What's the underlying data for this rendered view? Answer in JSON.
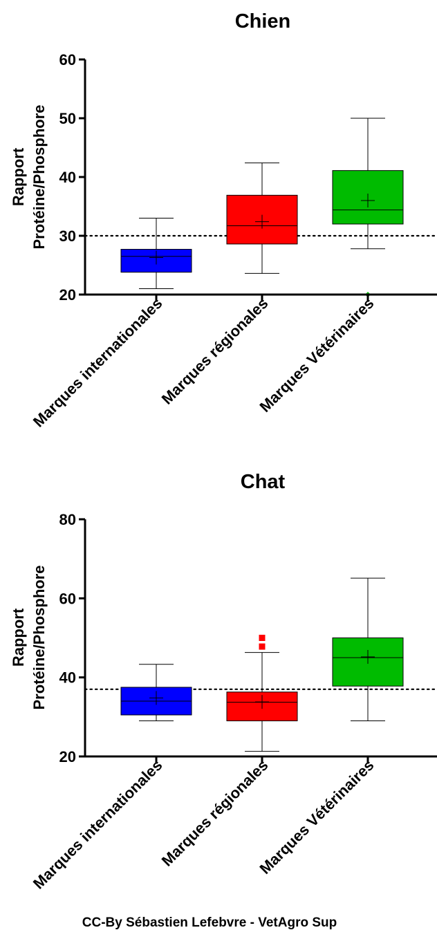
{
  "credit": "CC-By Sébastien Lefebvre - VetAgro Sup",
  "chart_data": [
    {
      "type": "box",
      "title": "Chien",
      "ylabel": [
        "Rapport",
        "Protéine/Phosphore"
      ],
      "ylim": [
        20,
        60
      ],
      "yticks": [
        "20",
        "30",
        "40",
        "50",
        "60"
      ],
      "reference_line": 30,
      "categories": [
        "Marques internationales",
        "Marques régionales",
        "Marques Vétérinaires"
      ],
      "colors": [
        "#0000ff",
        "#ff0000",
        "#00bb00"
      ],
      "boxes": [
        {
          "min": 21,
          "q1": 23.8,
          "median": 26.5,
          "q3": 27.7,
          "max": 33,
          "mean": 26.3,
          "outliers": []
        },
        {
          "min": 23.6,
          "q1": 28.6,
          "median": 31.7,
          "q3": 36.9,
          "max": 42.4,
          "mean": 32.4,
          "outliers": []
        },
        {
          "min": 27.8,
          "q1": 32,
          "median": 34.4,
          "q3": 41.1,
          "max": 50,
          "mean": 36,
          "outliers": [
            20
          ]
        }
      ]
    },
    {
      "type": "box",
      "title": "Chat",
      "ylabel": [
        "Rapport",
        "Protéine/Phosphore"
      ],
      "ylim": [
        20,
        80
      ],
      "yticks": [
        "20",
        "40",
        "60",
        "80"
      ],
      "reference_line": 37,
      "categories": [
        "Marques internationales",
        "Marques régionales",
        "Marques Vétérinaires"
      ],
      "colors": [
        "#0000ff",
        "#ff0000",
        "#00bb00"
      ],
      "boxes": [
        {
          "min": 29,
          "q1": 30.5,
          "median": 34,
          "q3": 37.5,
          "max": 43.3,
          "mean": 34.8,
          "outliers": []
        },
        {
          "min": 21.3,
          "q1": 29,
          "median": 33.7,
          "q3": 36.3,
          "max": 46.3,
          "mean": 33.8,
          "outliers": [
            47.8,
            50
          ]
        },
        {
          "min": 29,
          "q1": 37.8,
          "median": 45,
          "q3": 50,
          "max": 65.1,
          "mean": 45.2,
          "outliers": []
        }
      ]
    }
  ]
}
